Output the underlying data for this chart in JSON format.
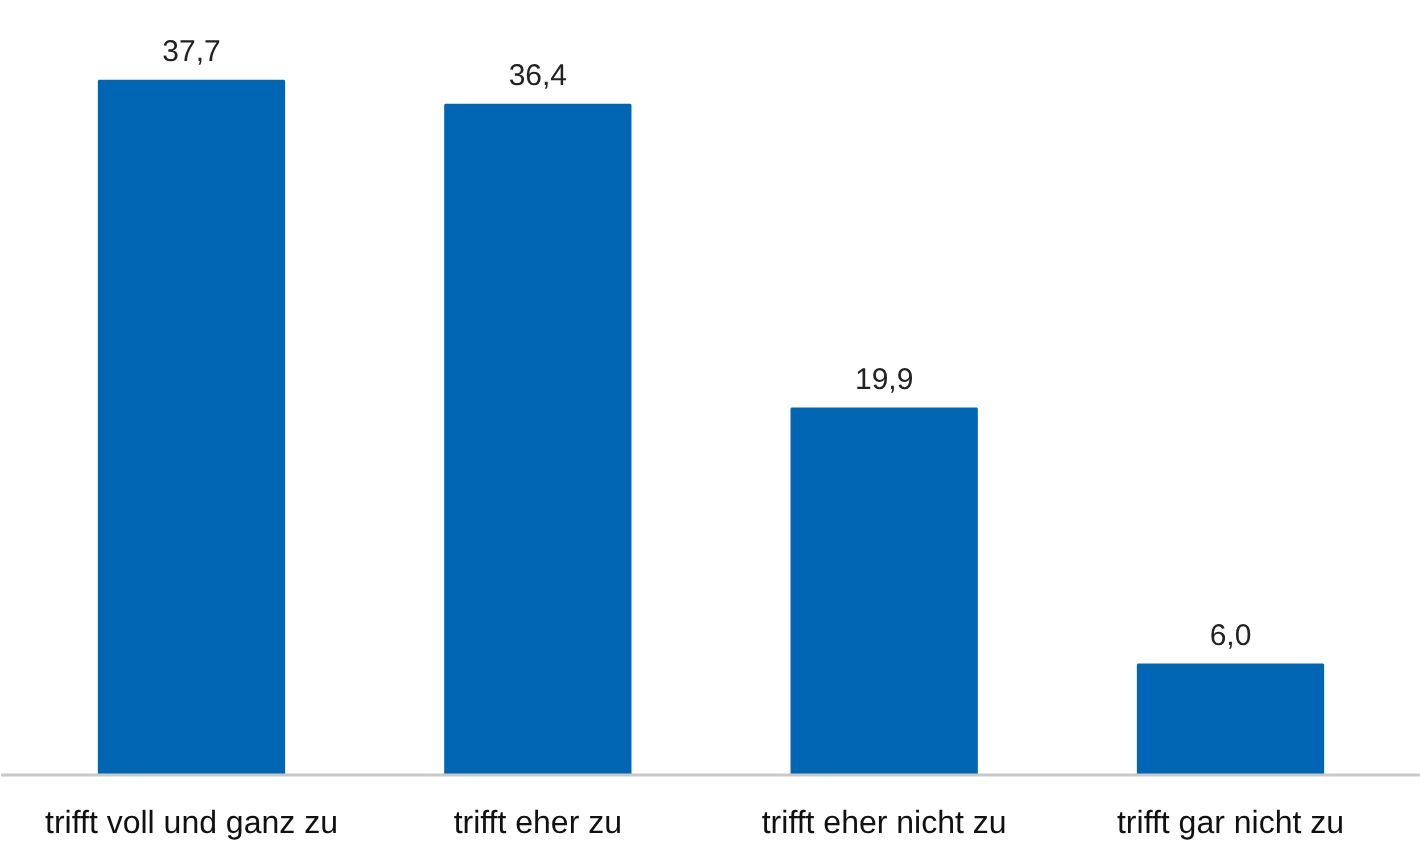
{
  "chart_data": {
    "type": "bar",
    "categories": [
      "trifft voll und ganz zu",
      "trifft eher zu",
      "trifft eher nicht zu",
      "trifft gar nicht zu"
    ],
    "values": [
      37.7,
      36.4,
      19.9,
      6.0
    ],
    "value_labels": [
      "37,7",
      "36,4",
      "19,9",
      "6,0"
    ],
    "color": "#0066b3"
  }
}
